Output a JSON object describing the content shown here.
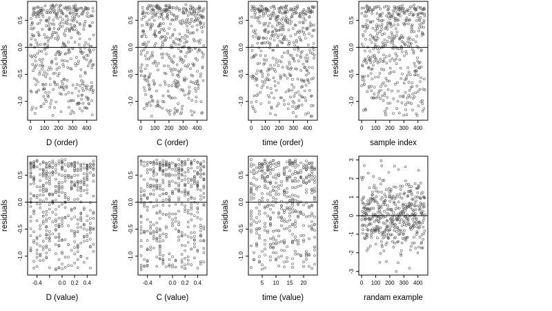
{
  "figure": {
    "background": "#ffffff",
    "point_color": "#555555",
    "reference_line_color": "#000000"
  },
  "chart_data": [
    {
      "type": "scatter",
      "xlabel": "D (order)",
      "ylabel": "residuals",
      "xlim": [
        -20,
        470
      ],
      "ylim": [
        -1.35,
        0.85
      ],
      "xticks": [
        0,
        100,
        200,
        300,
        400
      ],
      "xtick_labels": [
        "0",
        "100",
        "200",
        "300",
        "400"
      ],
      "yticks": [
        -1.0,
        -0.5,
        0.0,
        0.5
      ],
      "ytick_labels": [
        "-1.0",
        "-0.5",
        "0.0",
        "0.5"
      ],
      "hline": 0,
      "n_points": 450,
      "x_kind": "index",
      "y_range": [
        -1.25,
        0.75
      ],
      "grid": false,
      "legend": "none"
    },
    {
      "type": "scatter",
      "xlabel": "C (order)",
      "ylabel": "residuals",
      "xlim": [
        -20,
        470
      ],
      "ylim": [
        -1.35,
        0.85
      ],
      "xticks": [
        0,
        100,
        200,
        300,
        400
      ],
      "xtick_labels": [
        "0",
        "100",
        "200",
        "300",
        "400"
      ],
      "yticks": [
        -1.0,
        -0.5,
        0.0,
        0.5
      ],
      "ytick_labels": [
        "-1.0",
        "-0.5",
        "0.0",
        "0.5"
      ],
      "hline": 0,
      "n_points": 450,
      "x_kind": "index",
      "y_range": [
        -1.25,
        0.75
      ],
      "grid": false,
      "legend": "none"
    },
    {
      "type": "scatter",
      "xlabel": "time (order)",
      "ylabel": "residuals",
      "xlim": [
        -20,
        470
      ],
      "ylim": [
        -1.35,
        0.85
      ],
      "xticks": [
        0,
        100,
        200,
        300,
        400
      ],
      "xtick_labels": [
        "0",
        "100",
        "200",
        "300",
        "400"
      ],
      "yticks": [
        -1.0,
        -0.5,
        0.0,
        0.5
      ],
      "ytick_labels": [
        "-1.0",
        "-0.5",
        "0.0",
        "0.5"
      ],
      "hline": 0,
      "n_points": 450,
      "x_kind": "index",
      "y_range": [
        -1.25,
        0.75
      ],
      "grid": false,
      "legend": "none"
    },
    {
      "type": "scatter",
      "xlabel": "sample index",
      "ylabel": "residuals",
      "xlim": [
        -20,
        470
      ],
      "ylim": [
        -1.35,
        0.85
      ],
      "xticks": [
        0,
        100,
        200,
        300,
        400
      ],
      "xtick_labels": [
        "0",
        "100",
        "200",
        "300",
        "400"
      ],
      "yticks": [
        -1.0,
        -0.5,
        0.0,
        0.5
      ],
      "ytick_labels": [
        "-1.0",
        "-0.5",
        "0.0",
        "0.5"
      ],
      "hline": 0,
      "n_points": 450,
      "x_kind": "index",
      "y_range": [
        -1.25,
        0.75
      ],
      "grid": false,
      "legend": "none"
    },
    {
      "type": "scatter",
      "xlabel": "D (value)",
      "ylabel": "residuals",
      "xlim": [
        -0.55,
        0.55
      ],
      "ylim": [
        -1.35,
        0.85
      ],
      "xticks": [
        -0.4,
        -0.2,
        0.0,
        0.2,
        0.4
      ],
      "xtick_labels": [
        "-0.4",
        "",
        "0.0",
        "0.2",
        "0.4"
      ],
      "yticks": [
        -1.0,
        -0.5,
        0.0,
        0.5
      ],
      "ytick_labels": [
        "-1.0",
        "-0.5",
        "0.0",
        "0.5"
      ],
      "hline": 0,
      "n_points": 450,
      "x_kind": "levels",
      "x_range": [
        -0.5,
        0.5
      ],
      "n_levels": 21,
      "y_range": [
        -1.25,
        0.75
      ],
      "grid": false,
      "legend": "none"
    },
    {
      "type": "scatter",
      "xlabel": "C (value)",
      "ylabel": "residuals",
      "xlim": [
        -0.55,
        0.55
      ],
      "ylim": [
        -1.35,
        0.85
      ],
      "xticks": [
        -0.4,
        -0.2,
        0.0,
        0.2,
        0.4
      ],
      "xtick_labels": [
        "-0.4",
        "",
        "0.0",
        "0.2",
        "0.4"
      ],
      "yticks": [
        -1.0,
        -0.5,
        0.0,
        0.5
      ],
      "ytick_labels": [
        "-1.0",
        "-0.5",
        "0.0",
        "0.5"
      ],
      "hline": 0,
      "n_points": 450,
      "x_kind": "levels",
      "x_range": [
        -0.5,
        0.5
      ],
      "n_levels": 21,
      "y_range": [
        -1.25,
        0.75
      ],
      "grid": false,
      "legend": "none"
    },
    {
      "type": "scatter",
      "xlabel": "time (value)",
      "ylabel": "residuals",
      "xlim": [
        0,
        25
      ],
      "ylim": [
        -1.35,
        0.85
      ],
      "xticks": [
        5,
        10,
        15,
        20
      ],
      "xtick_labels": [
        "5",
        "10",
        "15",
        "20"
      ],
      "yticks": [
        -1.0,
        -0.5,
        0.0,
        0.5
      ],
      "ytick_labels": [
        "-1.0",
        "-0.5",
        "0.0",
        "0.5"
      ],
      "hline": 0,
      "n_points": 450,
      "x_kind": "levels",
      "x_range": [
        1,
        24
      ],
      "n_levels": 24,
      "y_range": [
        -1.25,
        0.75
      ],
      "grid": false,
      "legend": "none"
    },
    {
      "type": "scatter",
      "xlabel": "randam example",
      "ylabel": "residuals",
      "xlim": [
        -20,
        470
      ],
      "ylim": [
        -3.2,
        3.2
      ],
      "xticks": [
        0,
        100,
        200,
        300,
        400
      ],
      "xtick_labels": [
        "0",
        "100",
        "200",
        "300",
        "400"
      ],
      "yticks": [
        -3,
        -2,
        -1,
        0,
        1,
        2,
        3
      ],
      "ytick_labels": [
        "-3",
        "-2",
        "-1",
        "0",
        "1",
        "2",
        "3"
      ],
      "hline": 0,
      "n_points": 450,
      "x_kind": "index",
      "y_range": [
        -3,
        3
      ],
      "y_dist": "normal",
      "grid": false,
      "legend": "none"
    }
  ]
}
